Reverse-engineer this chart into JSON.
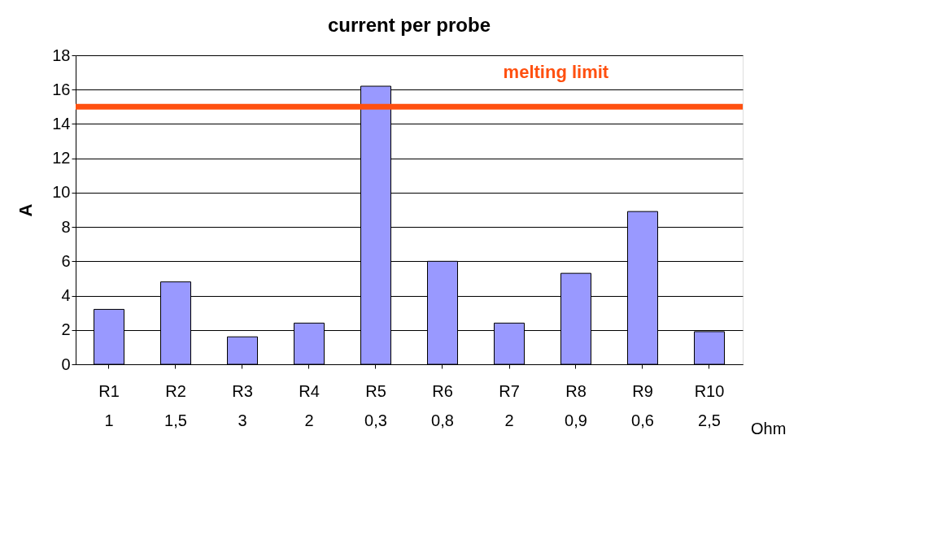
{
  "chart_data": {
    "type": "bar",
    "title": "current per probe",
    "ylabel": "A",
    "categories": [
      "R1\n1",
      "R2\n1,5",
      "R3\n3",
      "R4\n2",
      "R5\n0,3",
      "R6\n0,8",
      "R7\n2",
      "R8\n0,9",
      "R9\n0,6",
      "R10\n2,5"
    ],
    "values": [
      3.2,
      4.8,
      1.6,
      2.4,
      16.2,
      6.0,
      2.4,
      5.3,
      8.9,
      1.9
    ],
    "color": "#9999ff",
    "ylim": [
      0,
      18
    ],
    "yticks": [
      0,
      2,
      4,
      6,
      8,
      10,
      12,
      14,
      16,
      18
    ],
    "grid": "y",
    "ref_lines": [
      {
        "axis": "y",
        "value": 15,
        "label": "melting limit",
        "color": "#ff5010"
      }
    ],
    "annotations": [
      "Ohm"
    ]
  }
}
